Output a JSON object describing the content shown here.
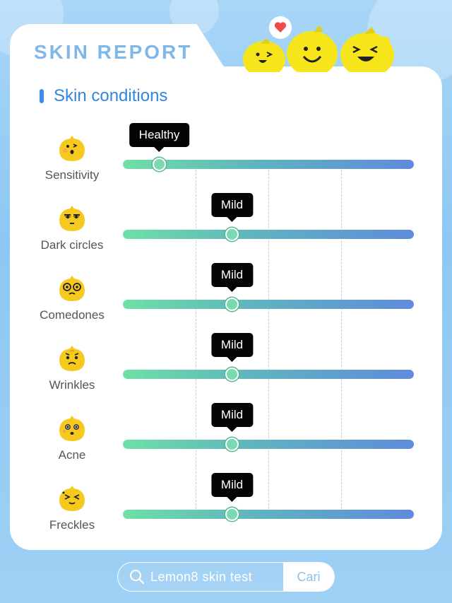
{
  "header": {
    "title": "SKIN REPORT"
  },
  "section": {
    "title": "Skin conditions"
  },
  "conditions": [
    {
      "label": "Sensitivity",
      "level": "Healthy",
      "level_fraction": 0.125,
      "icon": "blushing-lemon-face-icon"
    },
    {
      "label": "Dark circles",
      "level": "Mild",
      "level_fraction": 0.375,
      "icon": "tired-lemon-face-icon"
    },
    {
      "label": "Comedones",
      "level": "Mild",
      "level_fraction": 0.375,
      "icon": "covered-lemon-face-icon"
    },
    {
      "label": "Wrinkles",
      "level": "Mild",
      "level_fraction": 0.375,
      "icon": "worried-lemon-face-icon"
    },
    {
      "label": "Acne",
      "level": "Mild",
      "level_fraction": 0.375,
      "icon": "surprised-lemon-face-icon"
    },
    {
      "label": "Freckles",
      "level": "Mild",
      "level_fraction": 0.375,
      "icon": "squinting-lemon-face-icon"
    }
  ],
  "search": {
    "query": "Lemon8 skin test",
    "button_label": "Cari"
  },
  "colors": {
    "accent": "#2f87e0",
    "track_start": "#6ee0a5",
    "track_end": "#5f8bdc",
    "lemon": "#f7d21c"
  }
}
